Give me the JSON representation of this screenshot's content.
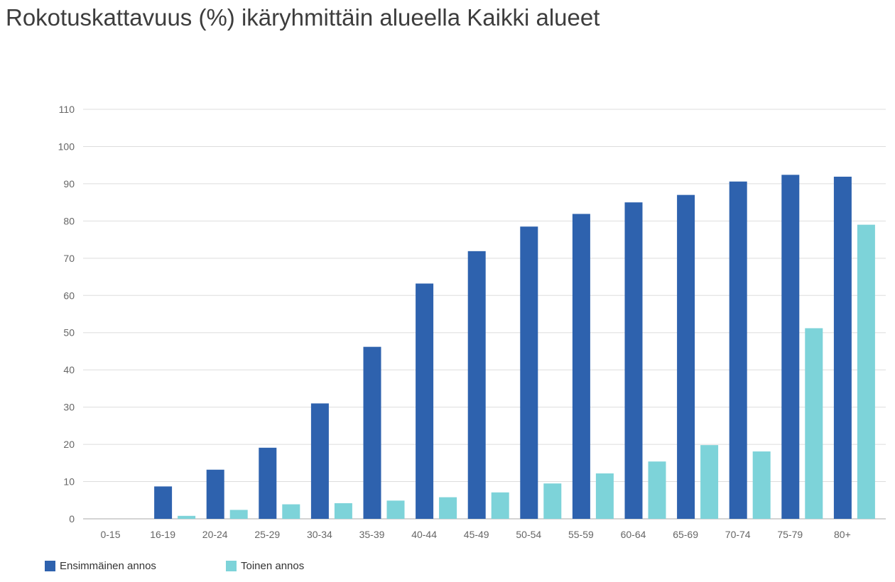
{
  "title": "Rokotuskattavuus (%) ikäryhmittäin alueella Kaikki alueet",
  "colors": {
    "first": "#2e62ae",
    "second": "#7dd3d9",
    "grid": "#dddddd",
    "axis": "#bbbbbb"
  },
  "chart_data": {
    "type": "bar",
    "title": "Rokotuskattavuus (%) ikäryhmittäin alueella Kaikki alueet",
    "categories": [
      "0-15",
      "16-19",
      "20-24",
      "25-29",
      "30-34",
      "35-39",
      "40-44",
      "45-49",
      "50-54",
      "55-59",
      "60-64",
      "65-69",
      "70-74",
      "75-79",
      "80+"
    ],
    "series": [
      {
        "name": "Ensimmäinen annos",
        "values": [
          0,
          8.7,
          13.2,
          19.1,
          31.0,
          46.2,
          63.2,
          71.9,
          78.5,
          81.9,
          85.0,
          87.0,
          90.6,
          92.4,
          91.9
        ]
      },
      {
        "name": "Toinen annos",
        "values": [
          0,
          0.8,
          2.4,
          3.9,
          4.2,
          4.9,
          5.8,
          7.1,
          9.5,
          12.2,
          15.4,
          19.8,
          18.1,
          51.2,
          79.0
        ]
      }
    ],
    "yticks": [
      0,
      10,
      20,
      30,
      40,
      50,
      60,
      70,
      80,
      90,
      100,
      110
    ],
    "ylim": [
      0,
      110
    ],
    "grid": true,
    "legend_position": "bottom-left"
  }
}
